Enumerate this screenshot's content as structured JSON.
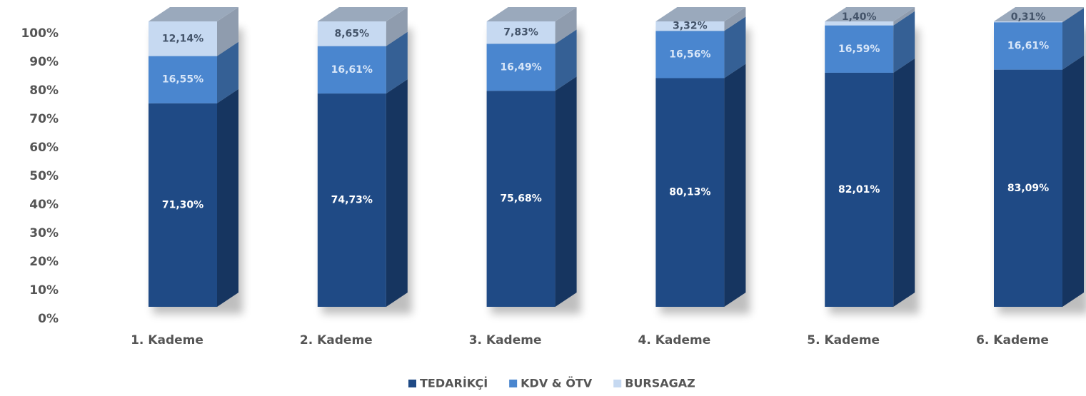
{
  "chart_data": {
    "type": "bar3d_stacked",
    "categories": [
      "1. Kademe",
      "2. Kademe",
      "3. Kademe",
      "4. Kademe",
      "5. Kademe",
      "6. Kademe"
    ],
    "series": [
      {
        "name": "TEDARİKÇİ",
        "color": "#1f4a85",
        "values": [
          71.3,
          74.73,
          75.68,
          80.13,
          82.01,
          83.09
        ],
        "value_labels": [
          "71,30%",
          "74,73%",
          "75,68%",
          "80,13%",
          "82,01%",
          "83,09%"
        ]
      },
      {
        "name": "KDV & ÖTV",
        "color": "#4a86cf",
        "values": [
          16.55,
          16.61,
          16.49,
          16.56,
          16.59,
          16.61
        ],
        "value_labels": [
          "16,55%",
          "16,61%",
          "16,49%",
          "16,56%",
          "16,59%",
          "16,61%"
        ]
      },
      {
        "name": "BURSAGAZ",
        "color": "#c6d9f1",
        "values": [
          12.14,
          8.65,
          7.83,
          3.32,
          1.4,
          0.31
        ],
        "value_labels": [
          "12,14%",
          "8,65%",
          "7,83%",
          "3,32%",
          "1,40%",
          "0,31%"
        ]
      }
    ],
    "ylim": [
      0,
      100
    ],
    "yticks": [
      {
        "value": 0,
        "label": "0%"
      },
      {
        "value": 10,
        "label": "10%"
      },
      {
        "value": 20,
        "label": "20%"
      },
      {
        "value": 30,
        "label": "30%"
      },
      {
        "value": 40,
        "label": "40%"
      },
      {
        "value": 50,
        "label": "50%"
      },
      {
        "value": 60,
        "label": "60%"
      },
      {
        "value": 70,
        "label": "70%"
      },
      {
        "value": 80,
        "label": "80%"
      },
      {
        "value": 90,
        "label": "90%"
      },
      {
        "value": 100,
        "label": "100%"
      }
    ],
    "legend": "bottom"
  }
}
